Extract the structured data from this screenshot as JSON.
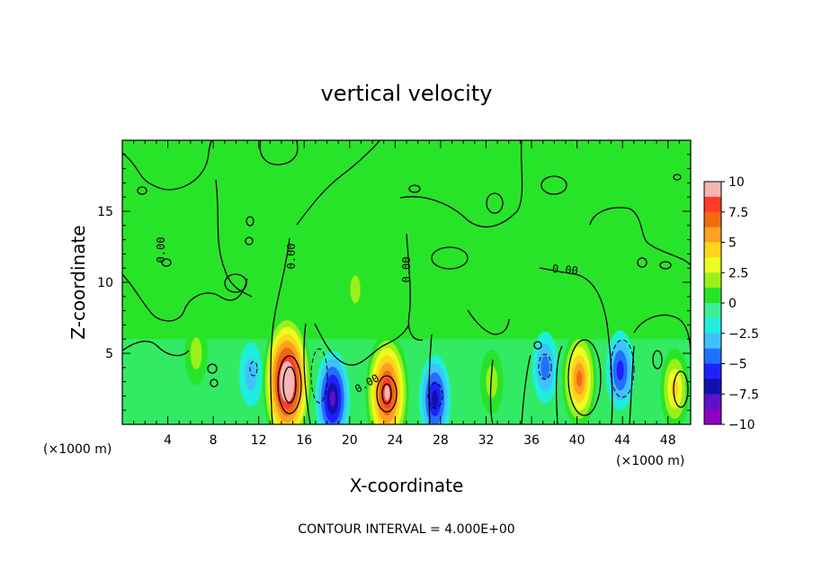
{
  "chart_data": {
    "type": "heatmap",
    "title": "vertical velocity",
    "xlabel": "X-coordinate",
    "ylabel": "Z-coordinate",
    "x_unit_left": "(×1000 m)",
    "x_unit_right": "(×1000 m)",
    "footer": "CONTOUR INTERVAL = 4.000E+00",
    "xlim": [
      0,
      50
    ],
    "ylim": [
      0,
      20
    ],
    "x_ticks": [
      4,
      8,
      12,
      16,
      20,
      24,
      28,
      32,
      36,
      40,
      44,
      48
    ],
    "y_ticks": [
      5,
      10,
      15
    ],
    "colorbar": {
      "range": [
        -10,
        10
      ],
      "tick_labels": [
        "10",
        "7.5",
        "5",
        "2.5",
        "0",
        "−2.5",
        "−5",
        "−7.5",
        "−10"
      ],
      "colors": [
        "#f6b4b4",
        "#ff3a28",
        "#f06a10",
        "#ffa020",
        "#ffd41a",
        "#e8ff20",
        "#9cf01a",
        "#28e428",
        "#3cee96",
        "#20eedc",
        "#40c0ff",
        "#2070ff",
        "#2020ff",
        "#1010b0",
        "#6010c8",
        "#9000c0"
      ]
    },
    "contour_labels": [
      "0.00",
      "0.00",
      "0.00",
      "0.00",
      "0.00"
    ],
    "features": [
      {
        "type": "updraft",
        "x": 14.5,
        "z": 3.0,
        "peak": 12
      },
      {
        "type": "updraft",
        "x": 23.3,
        "z": 2.2,
        "peak": 10
      },
      {
        "type": "updraft",
        "x": 40.2,
        "z": 3.2,
        "peak": 7
      },
      {
        "type": "updraft",
        "x": 48.6,
        "z": 2.5,
        "peak": 5
      },
      {
        "type": "updraft",
        "x": 6.5,
        "z": 5.0,
        "peak": 3
      },
      {
        "type": "updraft",
        "x": 32.5,
        "z": 3.0,
        "peak": 3
      },
      {
        "type": "weak-updraft",
        "x": 20.5,
        "z": 9.5,
        "peak": 2
      },
      {
        "type": "downdraft",
        "x": 18.5,
        "z": 1.8,
        "peak": -7
      },
      {
        "type": "downdraft",
        "x": 27.5,
        "z": 1.8,
        "peak": -6
      },
      {
        "type": "downdraft",
        "x": 43.8,
        "z": 3.8,
        "peak": -5
      },
      {
        "type": "downdraft",
        "x": 37.2,
        "z": 4.0,
        "peak": -4
      },
      {
        "type": "downdraft",
        "x": 11.3,
        "z": 3.5,
        "peak": -3
      }
    ]
  }
}
